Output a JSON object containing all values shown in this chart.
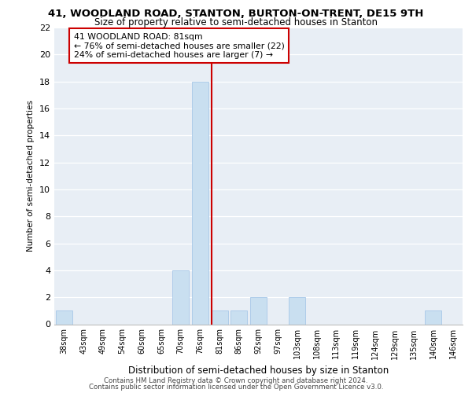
{
  "title": "41, WOODLAND ROAD, STANTON, BURTON-ON-TRENT, DE15 9TH",
  "subtitle": "Size of property relative to semi-detached houses in Stanton",
  "xlabel": "Distribution of semi-detached houses by size in Stanton",
  "ylabel": "Number of semi-detached properties",
  "categories": [
    "38sqm",
    "43sqm",
    "49sqm",
    "54sqm",
    "60sqm",
    "65sqm",
    "70sqm",
    "76sqm",
    "81sqm",
    "86sqm",
    "92sqm",
    "97sqm",
    "103sqm",
    "108sqm",
    "113sqm",
    "119sqm",
    "124sqm",
    "129sqm",
    "135sqm",
    "140sqm",
    "146sqm"
  ],
  "values": [
    1,
    0,
    0,
    0,
    0,
    0,
    4,
    18,
    1,
    1,
    2,
    0,
    2,
    0,
    0,
    0,
    0,
    0,
    0,
    1,
    0
  ],
  "bar_color": "#c9dff0",
  "bar_edge_color": "#a8c8e8",
  "vline_index": 8,
  "vline_color": "#cc0000",
  "annotation_text": "41 WOODLAND ROAD: 81sqm\n← 76% of semi-detached houses are smaller (22)\n24% of semi-detached houses are larger (7) →",
  "annotation_box_color": "#ffffff",
  "annotation_box_edge": "#cc0000",
  "ylim": [
    0,
    22
  ],
  "yticks": [
    0,
    2,
    4,
    6,
    8,
    10,
    12,
    14,
    16,
    18,
    20,
    22
  ],
  "background_color": "#e8eef5",
  "footer_line1": "Contains HM Land Registry data © Crown copyright and database right 2024.",
  "footer_line2": "Contains public sector information licensed under the Open Government Licence v3.0."
}
